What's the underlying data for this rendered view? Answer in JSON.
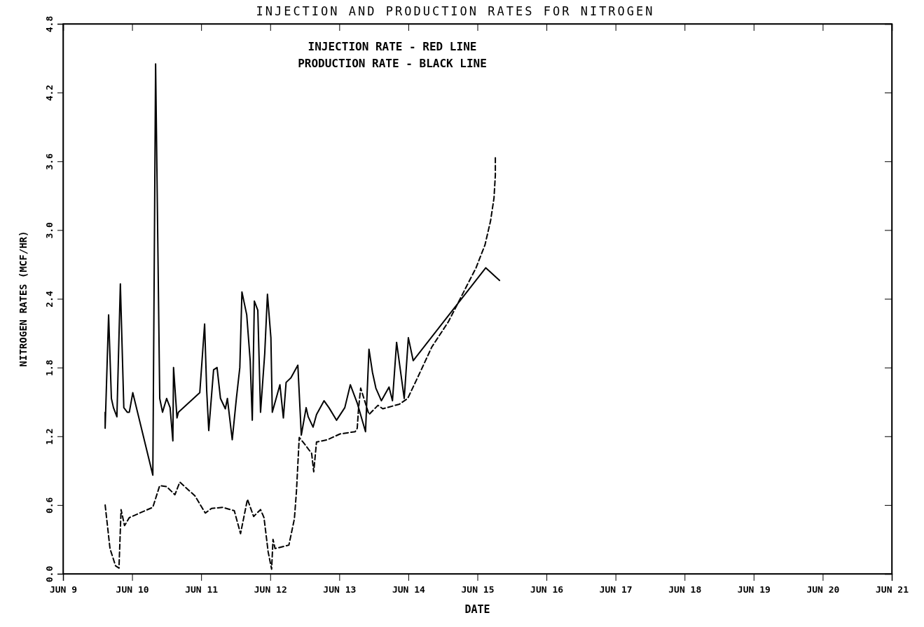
{
  "chart_data": {
    "type": "line",
    "title": "INJECTION AND PRODUCTION RATES FOR NITROGEN",
    "xlabel": "DATE",
    "ylabel": "NITROGEN RATES (MCF/HR)",
    "annotations": [
      "INJECTION  RATE - RED LINE",
      "PRODUCTION RATE - BLACK LINE"
    ],
    "xlim": [
      "--06-09",
      "--06-21"
    ],
    "xticks": [
      {
        "value": "--06-09",
        "label": "JUN 9"
      },
      {
        "value": "--06-10",
        "label": "JUN 10"
      },
      {
        "value": "--06-11",
        "label": "JUN 11"
      },
      {
        "value": "--06-12",
        "label": "JUN 12"
      },
      {
        "value": "--06-13",
        "label": "JUN 13"
      },
      {
        "value": "--06-14",
        "label": "JUN 14"
      },
      {
        "value": "--06-15",
        "label": "JUN 15"
      },
      {
        "value": "--06-16",
        "label": "JUN 16"
      },
      {
        "value": "--06-17",
        "label": "JUN 17"
      },
      {
        "value": "--06-18",
        "label": "JUN 18"
      },
      {
        "value": "--06-19",
        "label": "JUN 19"
      },
      {
        "value": "--06-20",
        "label": "JUN 20"
      },
      {
        "value": "--06-21",
        "label": "JUN 21"
      }
    ],
    "ylim": [
      0,
      4.8
    ],
    "yticks": [
      {
        "value": 0,
        "label": "0.0"
      },
      {
        "value": 0.6,
        "label": "0.6"
      },
      {
        "value": 1.2,
        "label": "1.2"
      },
      {
        "value": 1.8,
        "label": "1.8"
      },
      {
        "value": 2.4,
        "label": "2.4"
      },
      {
        "value": 3.0,
        "label": "3.0"
      },
      {
        "value": 3.6,
        "label": "3.6"
      },
      {
        "value": 4.2,
        "label": "4.2"
      },
      {
        "value": 4.8,
        "label": "4.8"
      }
    ],
    "grid": false,
    "marker": "none",
    "series": [
      {
        "color": "#000000",
        "line_style": "solid",
        "x": [
          "--06-09T14:38",
          "--06-09T14:38",
          "--06-09T15:50",
          "--06-09T16:48",
          "--06-09T17:31",
          "--06-09T18:43",
          "--06-09T19:55",
          "--06-09T21:07",
          "--06-09T22:19",
          "--06-09T23:02",
          "--06-10T00:14",
          "--06-10T07:12",
          "--06-10T08:10",
          "--06-10T09:36",
          "--06-10T10:34",
          "--06-10T12:00",
          "--06-10T13:12",
          "--06-10T14:10",
          "--06-10T14:24",
          "--06-10T15:36",
          "--06-10T16:05",
          "--06-10T23:31",
          "--06-11T01:12",
          "--06-11T01:55",
          "--06-11T02:38",
          "--06-11T04:19",
          "--06-11T05:31",
          "--06-11T06:43",
          "--06-11T08:24",
          "--06-11T09:07",
          "--06-11T10:48",
          "--06-11T12:14",
          "--06-11T13:26",
          "--06-11T14:10",
          "--06-11T15:50",
          "--06-11T17:02",
          "--06-11T17:46",
          "--06-11T18:29",
          "--06-11T19:41",
          "--06-11T20:38",
          "--06-11T22:05",
          "--06-11T23:02",
          "--06-12T00:14",
          "--06-12T00:43",
          "--06-12T03:22",
          "--06-12T04:34",
          "--06-12T05:31",
          "--06-12T07:12",
          "--06-12T09:36",
          "--06-12T10:48",
          "--06-12T12:29",
          "--06-12T13:12",
          "--06-12T14:53",
          "--06-12T16:05",
          "--06-12T18:43",
          "--06-12T20:24",
          "--06-12T23:02",
          "--06-13T01:55",
          "--06-13T03:50",
          "--06-13T06:14",
          "--06-13T09:07",
          "--06-13T10:19",
          "--06-13T11:31",
          "--06-13T12:43",
          "--06-13T14:38",
          "--06-13T17:17",
          "--06-13T18:29",
          "--06-13T19:55",
          "--06-13T22:34",
          "--06-14T00:00",
          "--06-14T01:41",
          "--06-15T02:53",
          "--06-15T07:41"
        ],
        "values": [
          1.41,
          1.27,
          2.26,
          1.53,
          1.45,
          1.37,
          2.53,
          1.45,
          1.41,
          1.41,
          1.58,
          0.86,
          4.45,
          1.53,
          1.41,
          1.53,
          1.45,
          1.16,
          1.8,
          1.36,
          1.41,
          1.58,
          2.18,
          1.6,
          1.25,
          1.78,
          1.8,
          1.53,
          1.44,
          1.53,
          1.17,
          1.53,
          1.8,
          2.46,
          2.26,
          1.86,
          1.34,
          2.38,
          2.3,
          1.41,
          1.92,
          2.44,
          2.06,
          1.41,
          1.65,
          1.36,
          1.67,
          1.71,
          1.82,
          1.21,
          1.45,
          1.37,
          1.28,
          1.39,
          1.51,
          1.45,
          1.34,
          1.45,
          1.65,
          1.49,
          1.24,
          1.96,
          1.76,
          1.62,
          1.51,
          1.63,
          1.51,
          2.02,
          1.53,
          2.06,
          1.86,
          2.67,
          2.56
        ]
      },
      {
        "color": "#000000",
        "line_style": "dashed",
        "x": [
          "--06-09T14:38",
          "--06-09T16:19",
          "--06-09T18:14",
          "--06-09T19:26",
          "--06-09T20:10",
          "--06-09T21:22",
          "--06-09T23:02",
          "--06-10T07:12",
          "--06-10T09:36",
          "--06-10T12:00",
          "--06-10T14:53",
          "--06-10T16:34",
          "--06-10T21:50",
          "--06-11T01:26",
          "--06-11T03:36",
          "--06-11T07:26",
          "--06-11T11:31",
          "--06-11T13:41",
          "--06-11T16:05",
          "--06-11T18:14",
          "--06-11T20:38",
          "--06-11T21:50",
          "--06-11T23:17",
          "--06-12T00:29",
          "--06-12T00:58",
          "--06-12T01:41",
          "--06-12T06:29",
          "--06-12T08:24",
          "--06-12T09:07",
          "--06-12T10:05",
          "--06-12T12:00",
          "--06-12T14:24",
          "--06-12T15:07",
          "--06-12T16:05",
          "--06-12T19:55",
          "--06-13T00:14",
          "--06-13T05:31",
          "--06-13T06:14",
          "--06-13T06:43",
          "--06-13T07:26",
          "--06-13T10:19",
          "--06-13T13:26",
          "--06-13T15:07",
          "--06-13T20:53",
          "--06-13T23:46",
          "--06-14T03:22",
          "--06-14T08:10",
          "--06-14T13:55",
          "--06-14T19:26",
          "--06-14T23:31",
          "--06-15T02:38",
          "--06-15T04:34",
          "--06-15T05:46",
          "--06-15T06:14",
          "--06-15T06:14"
        ],
        "values": [
          0.6,
          0.22,
          0.07,
          0.05,
          0.56,
          0.42,
          0.49,
          0.58,
          0.77,
          0.76,
          0.69,
          0.8,
          0.68,
          0.53,
          0.57,
          0.58,
          0.55,
          0.35,
          0.65,
          0.5,
          0.56,
          0.49,
          0.19,
          0.04,
          0.3,
          0.22,
          0.25,
          0.48,
          0.72,
          1.19,
          1.13,
          1.05,
          0.89,
          1.15,
          1.17,
          1.22,
          1.24,
          1.27,
          1.45,
          1.62,
          1.39,
          1.47,
          1.44,
          1.48,
          1.53,
          1.72,
          1.98,
          2.2,
          2.47,
          2.67,
          2.87,
          3.08,
          3.28,
          3.48,
          3.64
        ]
      }
    ]
  }
}
